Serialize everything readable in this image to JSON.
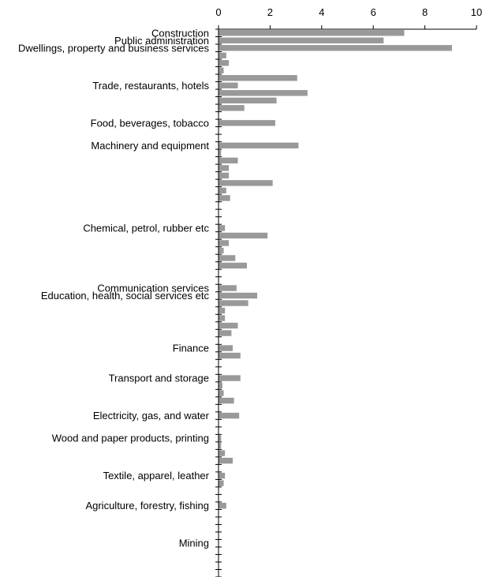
{
  "chart_data": {
    "type": "bar",
    "orientation": "horizontal",
    "title": "",
    "xlabel": "",
    "ylabel": "",
    "xlim": [
      0,
      10
    ],
    "x_ticks": [
      "0",
      "2",
      "4",
      "6",
      "8",
      "10"
    ],
    "grid": false,
    "legend": "none",
    "bar_color": "#999999",
    "categories": [
      "Construction",
      "Public administration",
      "Dwellings, property and business services",
      "",
      "",
      "",
      "",
      "Trade, restaurants, hotels",
      "",
      "",
      "",
      "",
      "Food, beverages, tobacco",
      "",
      "",
      "Machinery and equipment",
      "",
      "",
      "",
      "",
      "",
      "",
      "",
      "",
      "",
      "",
      "Chemical, petrol, rubber etc",
      "",
      "",
      "",
      "",
      "",
      "",
      "",
      "Communication services",
      "Education, health, social services etc",
      "",
      "",
      "",
      "",
      "",
      "",
      "Finance",
      "",
      "",
      "",
      "Transport and storage",
      "",
      "",
      "",
      "",
      "Electricity, gas, and water",
      "",
      "",
      "Wood and paper products, printing",
      "",
      "",
      "",
      "",
      "Textile, apparel, leather",
      "",
      "",
      "",
      "Agriculture, forestry, fishing",
      "",
      "",
      "",
      "",
      "Mining",
      "",
      "",
      "",
      ""
    ],
    "values": [
      7.2,
      6.4,
      9.05,
      0.3,
      0.4,
      0.2,
      3.05,
      0.75,
      3.45,
      2.25,
      1.0,
      0,
      2.2,
      0,
      0,
      3.1,
      0.1,
      0.75,
      0.4,
      0.4,
      2.1,
      0.3,
      0.45,
      0,
      0,
      0,
      0.25,
      1.9,
      0.4,
      0.2,
      0.65,
      1.1,
      0,
      0,
      0.7,
      1.5,
      1.15,
      0.25,
      0.25,
      0.75,
      0.5,
      0,
      0.55,
      0.85,
      0,
      0,
      0.85,
      0.15,
      0.2,
      0.6,
      0,
      0.8,
      0,
      0,
      0.1,
      0.1,
      0.25,
      0.55,
      0,
      0.25,
      0.2,
      0,
      0,
      0.3,
      0,
      0,
      0,
      0,
      0,
      0,
      0,
      0,
      0
    ]
  }
}
